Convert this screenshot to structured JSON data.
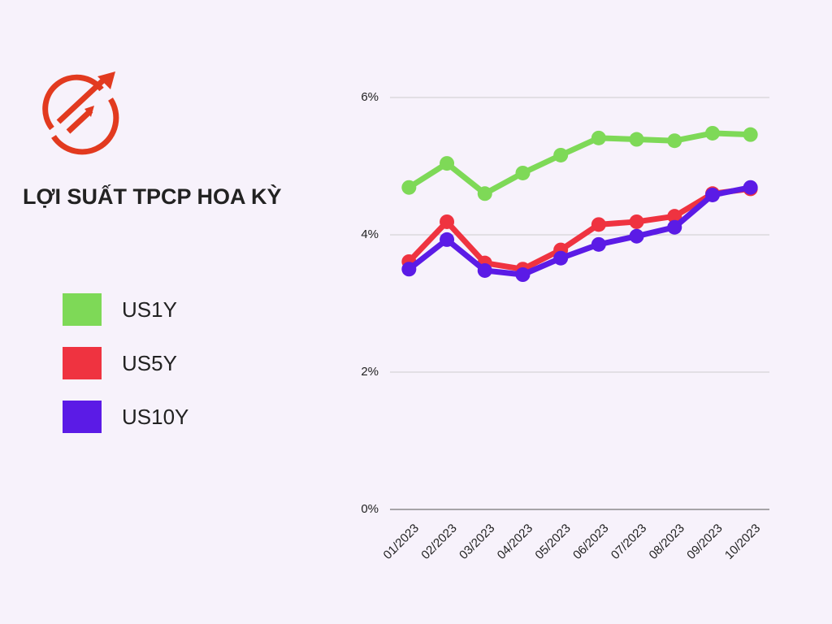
{
  "chart_data": {
    "type": "line",
    "title": "LỢI SUẤT TPCP HOA KỲ",
    "categories": [
      "01/2023",
      "02/2023",
      "03/2023",
      "04/2023",
      "05/2023",
      "06/2023",
      "07/2023",
      "08/2023",
      "09/2023",
      "10/2023"
    ],
    "series": [
      {
        "name": "US1Y",
        "color": "#7ed957",
        "values": [
          4.69,
          5.04,
          4.6,
          4.9,
          5.16,
          5.41,
          5.39,
          5.37,
          5.48,
          5.46
        ]
      },
      {
        "name": "US5Y",
        "color": "#ef3340",
        "values": [
          3.61,
          4.19,
          3.59,
          3.5,
          3.78,
          4.15,
          4.19,
          4.27,
          4.6,
          4.67
        ]
      },
      {
        "name": "US10Y",
        "color": "#5b1be6",
        "values": [
          3.5,
          3.93,
          3.48,
          3.42,
          3.66,
          3.86,
          3.98,
          4.11,
          4.58,
          4.69
        ]
      }
    ],
    "ylim": [
      0,
      6
    ],
    "yticks": [
      {
        "value": 0,
        "label": "0%"
      },
      {
        "value": 2,
        "label": "2%"
      },
      {
        "value": 4,
        "label": "4%"
      },
      {
        "value": 6,
        "label": "6%"
      }
    ],
    "grid": true
  }
}
